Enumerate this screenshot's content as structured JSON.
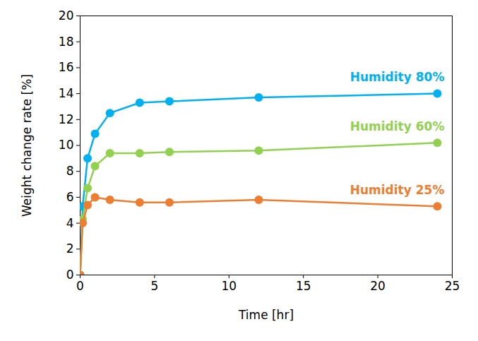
{
  "chart_data": {
    "type": "line",
    "x_label": "Time [hr]",
    "y_label": "Weight change rate [%]",
    "x": [
      0,
      0.17,
      0.5,
      1,
      2,
      4,
      6,
      12,
      24
    ],
    "series": [
      {
        "name": "Humidity 80%",
        "color": "#00B0F0",
        "marker": "circle",
        "values": [
          0,
          5.3,
          9.0,
          10.9,
          12.5,
          13.3,
          13.4,
          13.7,
          14.0
        ]
      },
      {
        "name": "Humidity 60%",
        "color": "#92D050",
        "marker": "circle",
        "values": [
          0,
          4.3,
          6.7,
          8.4,
          9.4,
          9.4,
          9.5,
          9.6,
          10.2
        ]
      },
      {
        "name": "Humidity 25%",
        "color": "#ED7D31",
        "marker": "circle",
        "values": [
          0,
          4.0,
          5.4,
          6.0,
          5.8,
          5.6,
          5.6,
          5.8,
          5.3
        ]
      }
    ],
    "xlim": [
      0,
      25
    ],
    "xticks": [
      0,
      5,
      10,
      15,
      20,
      25
    ],
    "ylim": [
      0,
      20
    ],
    "yticks": [
      0,
      2,
      4,
      6,
      8,
      10,
      12,
      14,
      16,
      18,
      20
    ],
    "grid": false
  }
}
